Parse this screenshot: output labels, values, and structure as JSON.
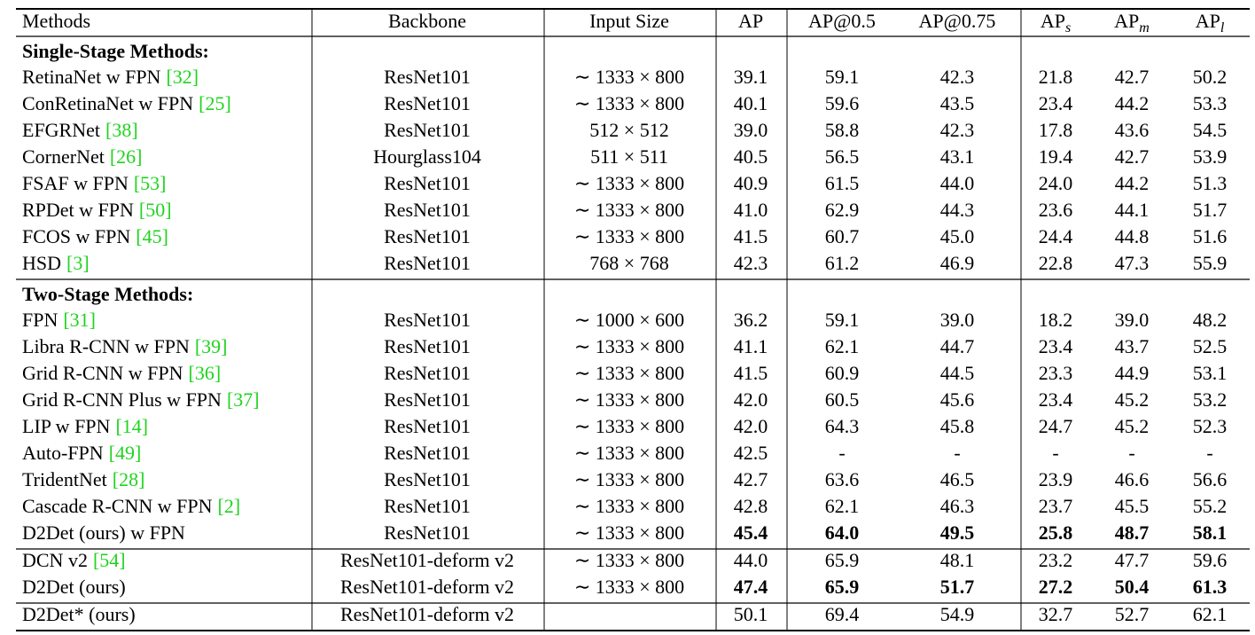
{
  "table": {
    "header": [
      "Methods",
      "Backbone",
      "Input Size",
      "AP",
      "AP@0.5",
      "AP@0.75",
      {
        "text": "AP",
        "sub": "s"
      },
      {
        "text": "AP",
        "sub": "m"
      },
      {
        "text": "AP",
        "sub": "l"
      }
    ],
    "sections": [
      {
        "title": "Single-Stage Methods:",
        "rows": [
          {
            "method": "RetinaNet w FPN",
            "ref": "[32]",
            "backbone": "ResNet101",
            "input": "∼ 1333 × 800",
            "scores": [
              "39.1",
              "59.1",
              "42.3",
              "21.8",
              "42.7",
              "50.2"
            ]
          },
          {
            "method": "ConRetinaNet w FPN",
            "ref": "[25]",
            "backbone": "ResNet101",
            "input": "∼ 1333 × 800",
            "scores": [
              "40.1",
              "59.6",
              "43.5",
              "23.4",
              "44.2",
              "53.3"
            ]
          },
          {
            "method": "EFGRNet",
            "ref": "[38]",
            "backbone": "ResNet101",
            "input": "512 × 512",
            "scores": [
              "39.0",
              "58.8",
              "42.3",
              "17.8",
              "43.6",
              "54.5"
            ]
          },
          {
            "method": "CornerNet",
            "ref": "[26]",
            "backbone": "Hourglass104",
            "input": "511 × 511",
            "scores": [
              "40.5",
              "56.5",
              "43.1",
              "19.4",
              "42.7",
              "53.9"
            ]
          },
          {
            "method": "FSAF w FPN",
            "ref": "[53]",
            "backbone": "ResNet101",
            "input": "∼ 1333 × 800",
            "scores": [
              "40.9",
              "61.5",
              "44.0",
              "24.0",
              "44.2",
              "51.3"
            ]
          },
          {
            "method": "RPDet w FPN",
            "ref": "[50]",
            "backbone": "ResNet101",
            "input": "∼ 1333 × 800",
            "scores": [
              "41.0",
              "62.9",
              "44.3",
              "23.6",
              "44.1",
              "51.7"
            ]
          },
          {
            "method": "FCOS w FPN",
            "ref": "[45]",
            "backbone": "ResNet101",
            "input": "∼ 1333 × 800",
            "scores": [
              "41.5",
              "60.7",
              "45.0",
              "24.4",
              "44.8",
              "51.6"
            ]
          },
          {
            "method": "HSD",
            "ref": "[3]",
            "backbone": "ResNet101",
            "input": "768 × 768",
            "scores": [
              "42.3",
              "61.2",
              "46.9",
              "22.8",
              "47.3",
              "55.9"
            ]
          }
        ]
      },
      {
        "title": "Two-Stage Methods:",
        "rows": [
          {
            "method": "FPN",
            "ref": "[31]",
            "backbone": "ResNet101",
            "input": "∼ 1000 × 600",
            "scores": [
              "36.2",
              "59.1",
              "39.0",
              "18.2",
              "39.0",
              "48.2"
            ]
          },
          {
            "method": "Libra R-CNN w FPN",
            "ref": "[39]",
            "backbone": "ResNet101",
            "input": "∼ 1333 × 800",
            "scores": [
              "41.1",
              "62.1",
              "44.7",
              "23.4",
              "43.7",
              "52.5"
            ]
          },
          {
            "method": "Grid R-CNN w FPN",
            "ref": "[36]",
            "backbone": "ResNet101",
            "input": "∼ 1333 × 800",
            "scores": [
              "41.5",
              "60.9",
              "44.5",
              "23.3",
              "44.9",
              "53.1"
            ]
          },
          {
            "method": "Grid R-CNN Plus w FPN",
            "ref": "[37]",
            "backbone": "ResNet101",
            "input": "∼ 1333 × 800",
            "scores": [
              "42.0",
              "60.5",
              "45.6",
              "23.4",
              "45.2",
              "53.2"
            ]
          },
          {
            "method": "LIP w FPN",
            "ref": "[14]",
            "backbone": "ResNet101",
            "input": "∼ 1333 × 800",
            "scores": [
              "42.0",
              "64.3",
              "45.8",
              "24.7",
              "45.2",
              "52.3"
            ]
          },
          {
            "method": "Auto-FPN",
            "ref": "[49]",
            "backbone": "ResNet101",
            "input": "∼ 1333 × 800",
            "scores": [
              "42.5",
              "-",
              "-",
              "-",
              "-",
              "-"
            ]
          },
          {
            "method": "TridentNet",
            "ref": "[28]",
            "backbone": "ResNet101",
            "input": "∼ 1333 × 800",
            "scores": [
              "42.7",
              "63.6",
              "46.5",
              "23.9",
              "46.6",
              "56.6"
            ]
          },
          {
            "method": "Cascade R-CNN w FPN",
            "ref": "[2]",
            "backbone": "ResNet101",
            "input": "∼ 1333 × 800",
            "scores": [
              "42.8",
              "62.1",
              "46.3",
              "23.7",
              "45.5",
              "55.2"
            ]
          },
          {
            "method": "D2Det (ours) w FPN",
            "backbone": "ResNet101",
            "input": "∼ 1333 × 800",
            "scores": [
              "45.4",
              "64.0",
              "49.5",
              "25.8",
              "48.7",
              "58.1"
            ],
            "bold": true
          }
        ]
      },
      {
        "rows": [
          {
            "method": "DCN v2",
            "ref": "[54]",
            "backbone": "ResNet101-deform v2",
            "input": "∼ 1333 × 800",
            "scores": [
              "44.0",
              "65.9",
              "48.1",
              "23.2",
              "47.7",
              "59.6"
            ]
          },
          {
            "method": "D2Det (ours)",
            "backbone": "ResNet101-deform v2",
            "input": "∼ 1333 × 800",
            "scores": [
              "47.4",
              "65.9",
              "51.7",
              "27.2",
              "50.4",
              "61.3"
            ],
            "bold": true
          }
        ]
      },
      {
        "rows": [
          {
            "method": "D2Det* (ours)",
            "backbone": "ResNet101-deform v2",
            "scores": [
              "50.1",
              "69.4",
              "54.9",
              "32.7",
              "52.7",
              "62.1"
            ]
          }
        ]
      }
    ]
  }
}
